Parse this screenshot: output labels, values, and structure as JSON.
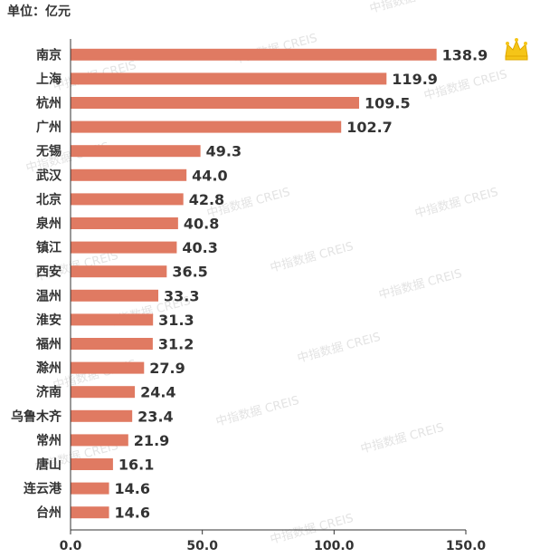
{
  "unit_label": "单位：亿元",
  "watermark_text": "中指数据 CREIS",
  "colors": {
    "bar": "#E07A62",
    "axis": "#333333",
    "label": "#333333",
    "crown": "#F5C518"
  },
  "crown_icon": "crown-icon",
  "chart_data": {
    "type": "bar",
    "orientation": "horizontal",
    "categories": [
      "南京",
      "上海",
      "杭州",
      "广州",
      "无锡",
      "武汉",
      "北京",
      "泉州",
      "镇江",
      "西安",
      "温州",
      "淮安",
      "福州",
      "滁州",
      "济南",
      "乌鲁木齐",
      "常州",
      "唐山",
      "连云港",
      "台州"
    ],
    "values": [
      138.9,
      119.9,
      109.5,
      102.7,
      49.3,
      44.0,
      42.8,
      40.8,
      40.3,
      36.5,
      33.3,
      31.3,
      31.2,
      27.9,
      24.4,
      23.4,
      21.9,
      16.1,
      14.6,
      14.6
    ],
    "value_labels": [
      "138.9",
      "119.9",
      "109.5",
      "102.7",
      "49.3",
      "44.0",
      "42.8",
      "40.8",
      "40.3",
      "36.5",
      "33.3",
      "31.3",
      "31.2",
      "27.9",
      "24.4",
      "23.4",
      "21.9",
      "16.1",
      "14.6",
      "14.6"
    ],
    "xlim": [
      0,
      150
    ],
    "x_ticks": [
      0,
      50,
      100,
      150
    ],
    "x_tick_labels": [
      "0.0",
      "50.0",
      "100.0",
      "150.0"
    ],
    "grid": false,
    "title": "",
    "xlabel": "",
    "ylabel": ""
  }
}
